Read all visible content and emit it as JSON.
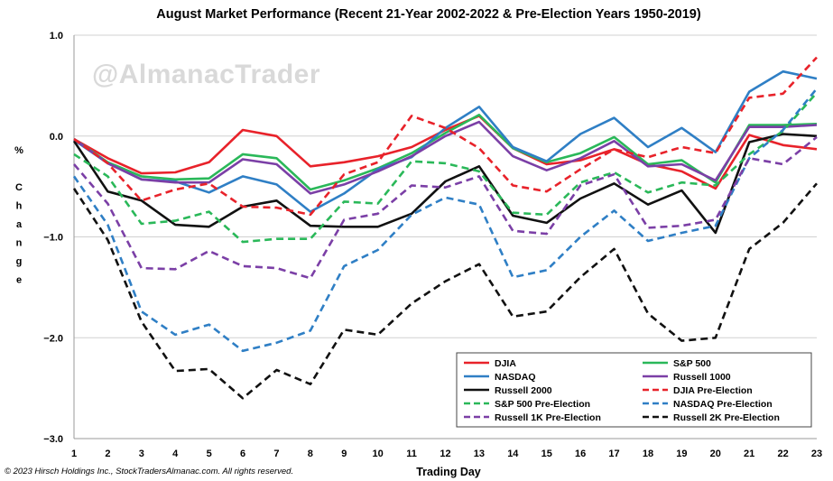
{
  "chart_data": {
    "type": "line",
    "title": "August Market Performance (Recent 21-Year 2002-2022 & Pre-Election Years 1950-2019)",
    "xlabel": "Trading Day",
    "ylabel": "% Change",
    "ylabel_chars": [
      "%",
      "",
      "C",
      "h",
      "a",
      "n",
      "g",
      "e"
    ],
    "x": [
      1,
      2,
      3,
      4,
      5,
      6,
      7,
      8,
      9,
      10,
      11,
      12,
      13,
      14,
      15,
      16,
      17,
      18,
      19,
      20,
      21,
      22,
      23
    ],
    "x_tick_labels": [
      "1",
      "2",
      "3",
      "4",
      "5",
      "6",
      "7",
      "8",
      "9",
      "10",
      "11",
      "12",
      "13",
      "14",
      "15",
      "16",
      "17",
      "18",
      "19",
      "20",
      "21",
      "22",
      "23"
    ],
    "ylim": [
      -3.0,
      1.0
    ],
    "y_ticks": [
      1.0,
      0.0,
      -1.0,
      -2.0,
      -3.0
    ],
    "y_tick_labels": [
      "1.0",
      "0.0",
      "−1.0",
      "−2.0",
      "−3.0"
    ],
    "grid": "horizontal",
    "legend_position": "bottom-right",
    "series": [
      {
        "name": "DJIA",
        "color": "#e8222a",
        "dash": "solid",
        "values": [
          -0.03,
          -0.22,
          -0.37,
          -0.36,
          -0.26,
          0.06,
          0.0,
          -0.3,
          -0.26,
          -0.2,
          -0.11,
          0.06,
          0.2,
          -0.12,
          -0.28,
          -0.24,
          -0.13,
          -0.28,
          -0.35,
          -0.52,
          0.01,
          -0.09,
          -0.13
        ]
      },
      {
        "name": "S&P 500",
        "color": "#2ab859",
        "dash": "solid",
        "values": [
          -0.03,
          -0.26,
          -0.4,
          -0.43,
          -0.42,
          -0.18,
          -0.22,
          -0.53,
          -0.44,
          -0.32,
          -0.17,
          0.03,
          0.21,
          -0.12,
          -0.26,
          -0.17,
          -0.01,
          -0.28,
          -0.24,
          -0.46,
          0.11,
          0.11,
          0.12
        ]
      },
      {
        "name": "NASDAQ",
        "color": "#2f7fc5",
        "dash": "solid",
        "values": [
          -0.04,
          -0.27,
          -0.43,
          -0.45,
          -0.56,
          -0.4,
          -0.48,
          -0.75,
          -0.57,
          -0.33,
          -0.21,
          0.08,
          0.29,
          -0.11,
          -0.25,
          0.02,
          0.18,
          -0.11,
          0.08,
          -0.16,
          0.44,
          0.64,
          0.57
        ]
      },
      {
        "name": "Russell 1000",
        "color": "#7b3fa6",
        "dash": "solid",
        "values": [
          -0.03,
          -0.27,
          -0.43,
          -0.46,
          -0.46,
          -0.23,
          -0.28,
          -0.57,
          -0.48,
          -0.35,
          -0.2,
          0.0,
          0.14,
          -0.2,
          -0.34,
          -0.22,
          -0.05,
          -0.3,
          -0.28,
          -0.44,
          0.09,
          0.09,
          0.11
        ]
      },
      {
        "name": "Russell 2000",
        "color": "#111111",
        "dash": "solid",
        "values": [
          -0.05,
          -0.55,
          -0.64,
          -0.88,
          -0.9,
          -0.7,
          -0.64,
          -0.89,
          -0.9,
          -0.9,
          -0.77,
          -0.45,
          -0.3,
          -0.79,
          -0.86,
          -0.62,
          -0.47,
          -0.68,
          -0.54,
          -0.96,
          -0.06,
          0.02,
          0.0
        ]
      },
      {
        "name": "DJIA Pre-Election",
        "color": "#e8222a",
        "dash": "dashed",
        "values": [
          -0.03,
          -0.27,
          -0.64,
          -0.53,
          -0.47,
          -0.7,
          -0.71,
          -0.78,
          -0.38,
          -0.26,
          0.2,
          0.08,
          -0.12,
          -0.49,
          -0.55,
          -0.33,
          -0.13,
          -0.21,
          -0.11,
          -0.17,
          0.38,
          0.42,
          0.78
        ]
      },
      {
        "name": "S&P 500 Pre-Election",
        "color": "#2ab859",
        "dash": "dashed",
        "values": [
          -0.18,
          -0.4,
          -0.87,
          -0.84,
          -0.75,
          -1.05,
          -1.02,
          -1.02,
          -0.65,
          -0.67,
          -0.25,
          -0.27,
          -0.35,
          -0.76,
          -0.78,
          -0.46,
          -0.36,
          -0.56,
          -0.46,
          -0.49,
          -0.18,
          0.05,
          0.43
        ]
      },
      {
        "name": "NASDAQ Pre-Election",
        "color": "#2f7fc5",
        "dash": "dashed",
        "values": [
          -0.4,
          -0.88,
          -1.74,
          -1.97,
          -1.87,
          -2.13,
          -2.05,
          -1.93,
          -1.29,
          -1.13,
          -0.78,
          -0.61,
          -0.68,
          -1.4,
          -1.33,
          -1.0,
          -0.74,
          -1.04,
          -0.96,
          -0.89,
          -0.22,
          0.06,
          0.47
        ]
      },
      {
        "name": "Russell 1K Pre-Election",
        "color": "#7b3fa6",
        "dash": "dashed",
        "values": [
          -0.28,
          -0.67,
          -1.31,
          -1.32,
          -1.14,
          -1.29,
          -1.31,
          -1.41,
          -0.83,
          -0.77,
          -0.49,
          -0.51,
          -0.4,
          -0.94,
          -0.97,
          -0.49,
          -0.38,
          -0.91,
          -0.89,
          -0.83,
          -0.22,
          -0.28,
          -0.01
        ]
      },
      {
        "name": "Russell 2K Pre-Election",
        "color": "#111111",
        "dash": "dashed",
        "values": [
          -0.52,
          -1.03,
          -1.84,
          -2.33,
          -2.31,
          -2.6,
          -2.32,
          -2.46,
          -1.92,
          -1.97,
          -1.66,
          -1.44,
          -1.27,
          -1.79,
          -1.74,
          -1.4,
          -1.12,
          -1.76,
          -2.03,
          -2.0,
          -1.12,
          -0.86,
          -0.47
        ]
      }
    ]
  },
  "legend_rows": [
    [
      "DJIA",
      "S&P 500"
    ],
    [
      "NASDAQ",
      "Russell 1000"
    ],
    [
      "Russell 2000",
      "DJIA Pre-Election"
    ],
    [
      "S&P 500 Pre-Election",
      "NASDAQ Pre-Election"
    ],
    [
      "Russell 1K Pre-Election",
      "Russell 2K Pre-Election"
    ]
  ],
  "watermark": "@AlmanacTrader",
  "copyright": "© 2023 Hirsch Holdings Inc., StockTradersAlmanac.com. All rights reserved."
}
